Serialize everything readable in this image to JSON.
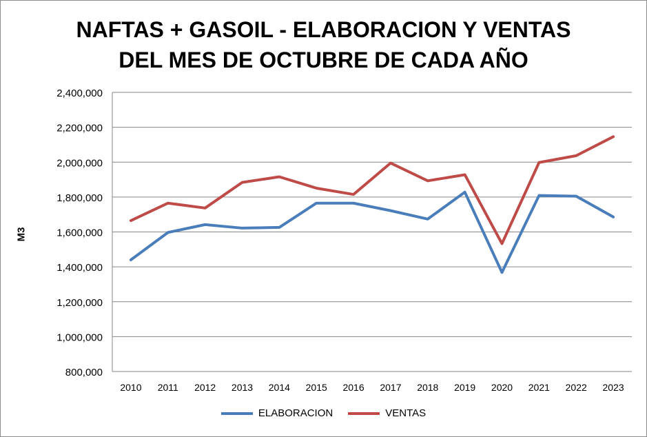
{
  "chart_data": {
    "type": "line",
    "title": [
      "NAFTAS + GASOIL - ELABORACION Y VENTAS",
      "DEL MES DE OCTUBRE DE CADA AÑO"
    ],
    "xlabel": "",
    "ylabel": "M3",
    "categories": [
      "2010",
      "2011",
      "2012",
      "2013",
      "2014",
      "2015",
      "2016",
      "2017",
      "2018",
      "2019",
      "2020",
      "2021",
      "2022",
      "2023"
    ],
    "ylim": [
      800000,
      2400000
    ],
    "yticks": [
      800000,
      1000000,
      1200000,
      1400000,
      1600000,
      1800000,
      2000000,
      2200000,
      2400000
    ],
    "ytick_labels": [
      "800,000",
      "1,000,000",
      "1,200,000",
      "1,400,000",
      "1,600,000",
      "1,800,000",
      "2,000,000",
      "2,200,000",
      "2,400,000"
    ],
    "grid": true,
    "legend_position": "bottom",
    "series": [
      {
        "name": "ELABORACION",
        "color": "#4a7ebb",
        "values": [
          1440000,
          1597000,
          1642000,
          1622000,
          1626000,
          1765000,
          1765000,
          1722000,
          1674000,
          1828000,
          1368000,
          1809000,
          1805000,
          1686000
        ]
      },
      {
        "name": "VENTAS",
        "color": "#be4b48",
        "values": [
          1665000,
          1765000,
          1737000,
          1884000,
          1916000,
          1851000,
          1815000,
          1995000,
          1893000,
          1928000,
          1533000,
          1998000,
          2037000,
          2146000
        ]
      }
    ]
  }
}
